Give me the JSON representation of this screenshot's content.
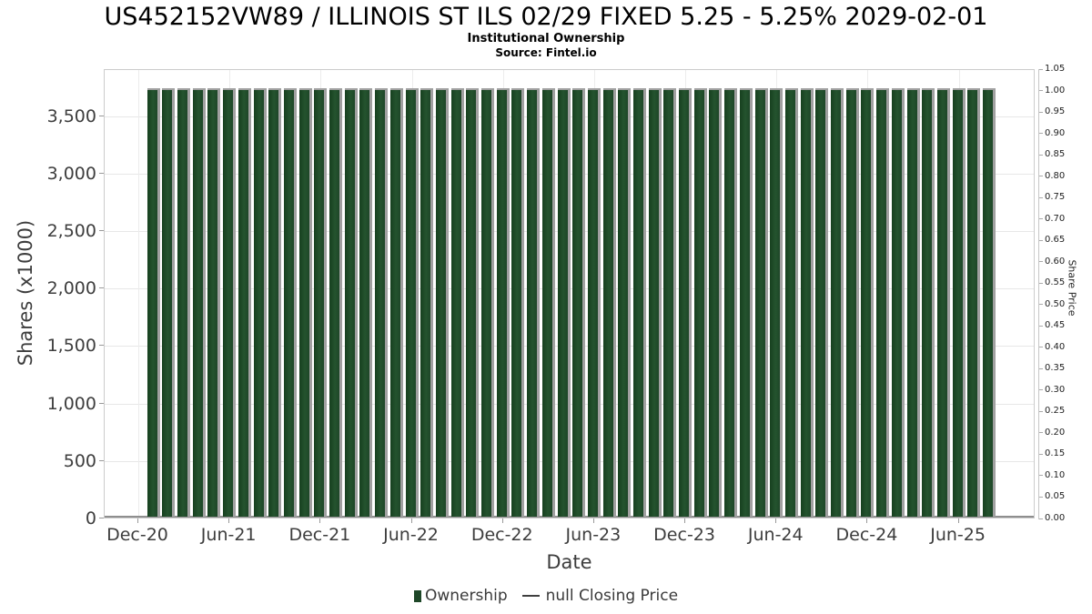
{
  "chart_data": {
    "type": "bar",
    "title": "US452152VW89 / ILLINOIS ST ILS 02/29 FIXED 5.25 - 5.25% 2029-02-01",
    "subtitle": "Institutional Ownership",
    "source": "Source: Fintel.io",
    "xlabel": "Date",
    "ylabel": "Shares (x1000)",
    "y2label": "Share Price",
    "grid": true,
    "legend_position": "bottom",
    "x_tick_labels": [
      "Dec-20",
      "Jun-21",
      "Dec-21",
      "Jun-22",
      "Dec-22",
      "Jun-23",
      "Dec-23",
      "Jun-24",
      "Dec-24",
      "Jun-25"
    ],
    "categories": [
      "Jan-21",
      "Feb-21",
      "Mar-21",
      "Apr-21",
      "May-21",
      "Jun-21",
      "Jul-21",
      "Aug-21",
      "Sep-21",
      "Oct-21",
      "Nov-21",
      "Dec-21",
      "Jan-22",
      "Feb-22",
      "Mar-22",
      "Apr-22",
      "May-22",
      "Jun-22",
      "Jul-22",
      "Aug-22",
      "Sep-22",
      "Oct-22",
      "Nov-22",
      "Dec-22",
      "Jan-23",
      "Feb-23",
      "Mar-23",
      "Apr-23",
      "May-23",
      "Jun-23",
      "Jul-23",
      "Aug-23",
      "Sep-23",
      "Oct-23",
      "Nov-23",
      "Dec-23",
      "Jan-24",
      "Feb-24",
      "Mar-24",
      "Apr-24",
      "May-24",
      "Jun-24",
      "Jul-24",
      "Aug-24",
      "Sep-24",
      "Oct-24",
      "Nov-24",
      "Dec-24",
      "Jan-25",
      "Feb-25",
      "Mar-25",
      "Apr-25",
      "May-25",
      "Jun-25",
      "Jul-25",
      "Aug-25"
    ],
    "series": [
      {
        "name": "Ownership",
        "type": "bar",
        "axis": "left",
        "color": "#1e4728",
        "edge_color": "#a0a0a0",
        "values": [
          3725,
          3725,
          3725,
          3725,
          3725,
          3725,
          3725,
          3725,
          3725,
          3725,
          3725,
          3725,
          3725,
          3725,
          3725,
          3725,
          3725,
          3725,
          3725,
          3725,
          3725,
          3725,
          3725,
          3725,
          3725,
          3725,
          3725,
          3725,
          3725,
          3725,
          3725,
          3725,
          3725,
          3725,
          3725,
          3725,
          3725,
          3725,
          3725,
          3725,
          3725,
          3725,
          3725,
          3725,
          3725,
          3725,
          3725,
          3725,
          3725,
          3725,
          3725,
          3725,
          3725,
          3725,
          3725,
          3725
        ]
      },
      {
        "name": "null Closing Price",
        "type": "line",
        "axis": "right",
        "color": "#3f3f3f",
        "values": []
      }
    ],
    "ylim": [
      0,
      3910
    ],
    "yticks": {
      "values": [
        0,
        500,
        1000,
        1500,
        2000,
        2500,
        3000,
        3500
      ],
      "labels": [
        "0",
        "500",
        "1,000",
        "1,500",
        "2,000",
        "2,500",
        "3,000",
        "3,500"
      ]
    },
    "y2lim": [
      0,
      1.05
    ],
    "y2ticks": {
      "values": [
        0,
        0.05,
        0.1,
        0.15,
        0.2,
        0.25,
        0.3,
        0.35,
        0.4,
        0.45,
        0.5,
        0.55,
        0.6,
        0.65,
        0.7,
        0.75,
        0.8,
        0.85,
        0.9,
        0.95,
        1.0,
        1.05
      ],
      "labels": [
        "0.00",
        "0.05",
        "0.10",
        "0.15",
        "0.20",
        "0.25",
        "0.30",
        "0.35",
        "0.40",
        "0.45",
        "0.50",
        "0.55",
        "0.60",
        "0.65",
        "0.70",
        "0.75",
        "0.80",
        "0.85",
        "0.90",
        "0.95",
        "1.00",
        "1.05"
      ]
    }
  },
  "legend": {
    "items": [
      {
        "label": "Ownership",
        "swatch": "square",
        "color": "#1e4728"
      },
      {
        "label": "null Closing Price",
        "swatch": "line",
        "color": "#3f3f3f"
      }
    ]
  }
}
